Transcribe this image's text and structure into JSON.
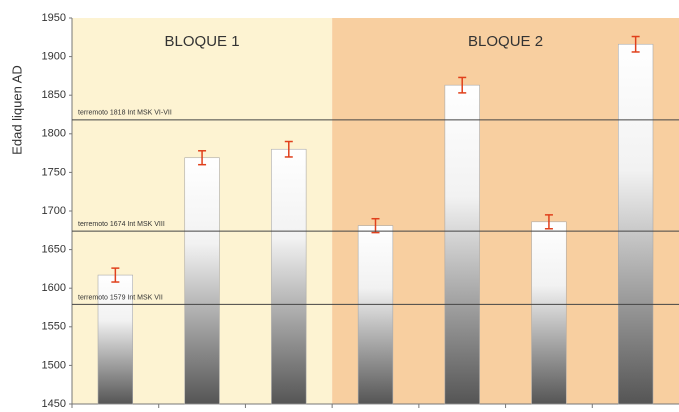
{
  "chart_data": {
    "type": "bar",
    "y_label": "Edad liquen AD",
    "categories": [
      null,
      null,
      null,
      null,
      null,
      null,
      null
    ],
    "values": [
      1617,
      1769,
      1780,
      1681,
      1863,
      1686,
      1916
    ],
    "errors": [
      9,
      9,
      10,
      9,
      10,
      9,
      10
    ],
    "error_color": "#e0401c",
    "ylim": [
      1450,
      1950
    ],
    "yticks": [
      1450,
      1500,
      1550,
      1600,
      1650,
      1700,
      1750,
      1800,
      1850,
      1900,
      1950
    ],
    "groups": [
      {
        "label": "BLOQUE 1",
        "color": "#fdf3d2"
      },
      {
        "label": "BLOQUE 2",
        "color": "#f8cfa0"
      }
    ],
    "reference_lines": [
      {
        "label": "terremoto 1818 Int MSK VI-VII",
        "value": 1818
      },
      {
        "label": "terremoto 1674 Int MSK VIII",
        "value": 1674
      },
      {
        "label": "terremoto 1579 Int MSK VII",
        "value": 1579
      }
    ]
  }
}
